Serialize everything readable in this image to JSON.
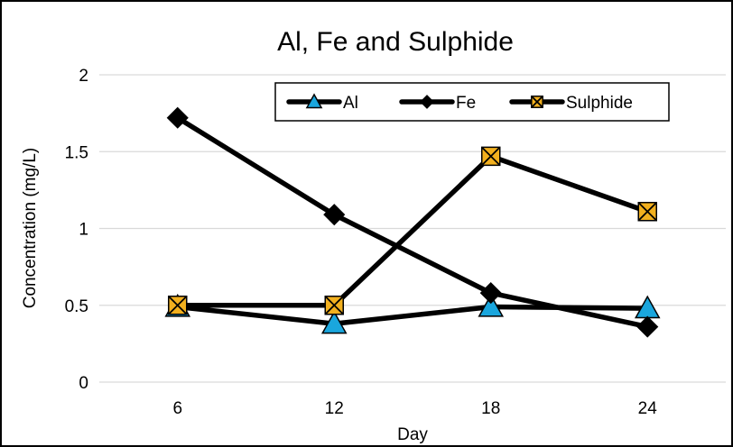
{
  "chart_data": {
    "type": "line",
    "title": "Al, Fe and Sulphide",
    "xlabel": "Day",
    "ylabel": "Concentration (mg/L)",
    "categories": [
      "6",
      "12",
      "18",
      "24"
    ],
    "ylim": [
      0,
      2
    ],
    "yticks": [
      0,
      0.5,
      1,
      1.5,
      2
    ],
    "ytick_labels": [
      "0",
      "0.5",
      "1",
      "1.5",
      "2"
    ],
    "grid": true,
    "legend_position": "top-right",
    "series": [
      {
        "name": "Al",
        "values": [
          0.49,
          0.38,
          0.49,
          0.48
        ],
        "line_color": "#000000",
        "marker": "triangle",
        "marker_color": "#1aa6dd"
      },
      {
        "name": "Fe",
        "values": [
          1.72,
          1.09,
          0.58,
          0.36
        ],
        "line_color": "#000000",
        "marker": "diamond",
        "marker_color": "#000000"
      },
      {
        "name": "Sulphide",
        "values": [
          0.5,
          0.5,
          1.47,
          1.11
        ],
        "line_color": "#000000",
        "marker": "x-square",
        "marker_color": "#f2b01e"
      }
    ]
  }
}
